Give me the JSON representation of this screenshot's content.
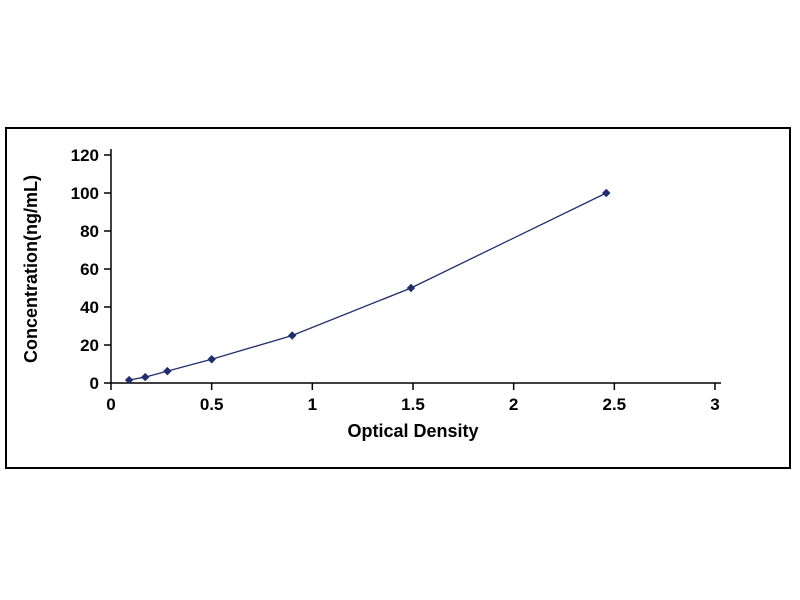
{
  "page": {
    "background_color": "#ffffff",
    "figure_border_color": "#000000"
  },
  "chart_data": {
    "type": "line",
    "title": "",
    "xlabel": "Optical Density",
    "ylabel": "Concentration(ng/mL)",
    "x": [
      0.09,
      0.17,
      0.28,
      0.5,
      0.9,
      1.49,
      2.46
    ],
    "y": [
      1.56,
      3.12,
      6.25,
      12.5,
      25,
      50,
      100
    ],
    "xlim": [
      0,
      3
    ],
    "ylim": [
      0,
      120
    ],
    "xticks": [
      0,
      0.5,
      1,
      1.5,
      2,
      2.5,
      3
    ],
    "yticks": [
      0,
      20,
      40,
      60,
      80,
      100,
      120
    ],
    "line_color": "#1f2e6e",
    "marker": "diamond",
    "grid": false,
    "legend": null
  }
}
